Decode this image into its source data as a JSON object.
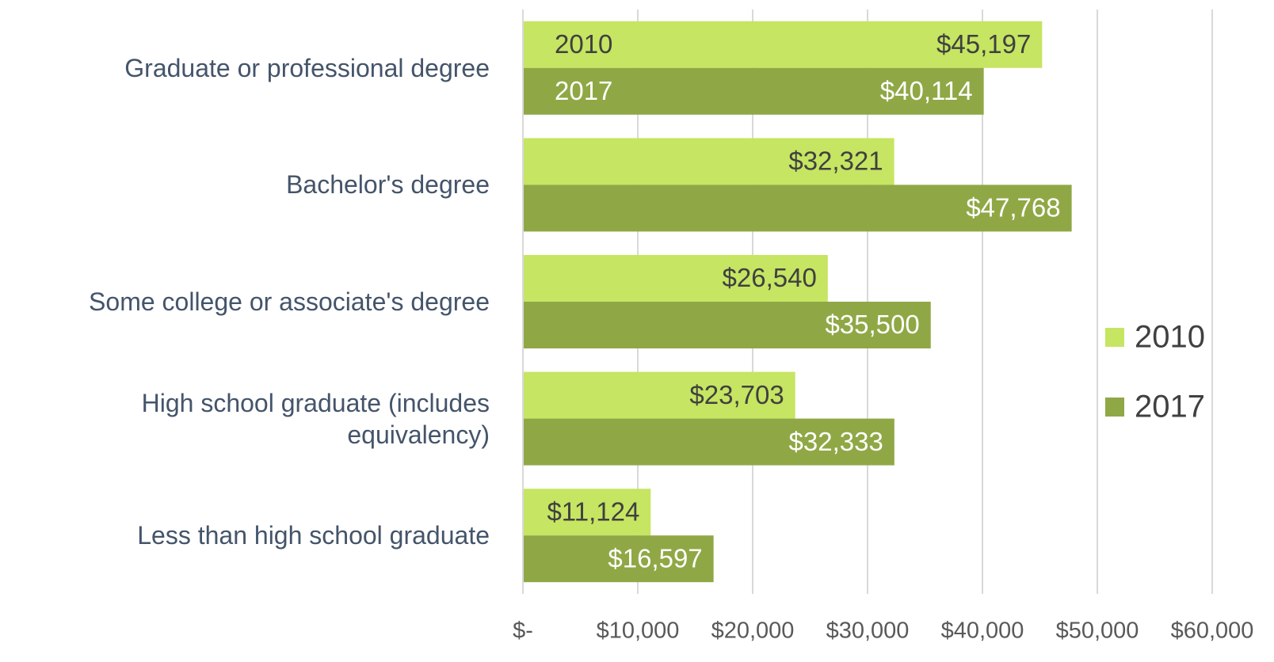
{
  "chart_data": {
    "type": "hbar",
    "categories": [
      "Graduate or professional degree",
      "Bachelor's degree",
      "Some college or associate's degree",
      "High school graduate (includes equivalency)",
      "Less than high school graduate"
    ],
    "series": [
      {
        "name": "2010",
        "color": "#c6e562",
        "values": [
          45197,
          32321,
          26540,
          23703,
          11124
        ],
        "value_labels": [
          "$45,197",
          "$32,321",
          "$26,540",
          "$23,703",
          "$11,124"
        ]
      },
      {
        "name": "2017",
        "color": "#8fa845",
        "values": [
          40114,
          47768,
          35500,
          32333,
          16597
        ],
        "value_labels": [
          "$40,114",
          "$47,768",
          "$35,500",
          "$32,333",
          "$16,597"
        ]
      }
    ],
    "xlim": [
      0,
      60000
    ],
    "xticks": [
      {
        "value": 0,
        "label": "$-"
      },
      {
        "value": 10000,
        "label": "$10,000"
      },
      {
        "value": 20000,
        "label": "$20,000"
      },
      {
        "value": 30000,
        "label": "$30,000"
      },
      {
        "value": 40000,
        "label": "$40,000"
      },
      {
        "value": 50000,
        "label": "$50,000"
      },
      {
        "value": 60000,
        "label": "$60,000"
      }
    ],
    "grid": true,
    "legend": "right"
  }
}
